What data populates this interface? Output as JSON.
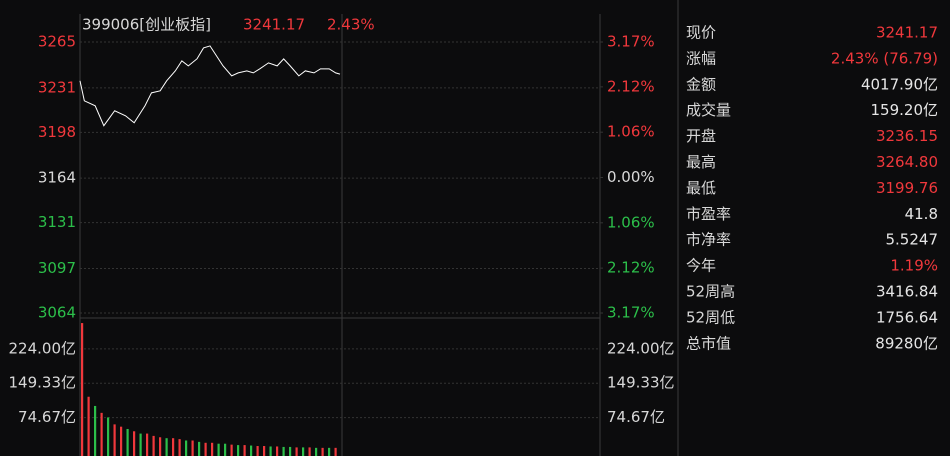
{
  "chart_data": {
    "type": "line",
    "title": "399006[创业板指]",
    "price_label": "3241.17",
    "change_label": "2.43%",
    "up_color": "#f0383c",
    "down_color": "#2cbf4a",
    "line_color": "#ffffff",
    "x": [
      0,
      2,
      7,
      11,
      16,
      21,
      25,
      30,
      33,
      37,
      40,
      44,
      47,
      50,
      54,
      57,
      60,
      63,
      66,
      70,
      73,
      77,
      80,
      83,
      87,
      91,
      94,
      97,
      101,
      104,
      108,
      111,
      115,
      118,
      120
    ],
    "values": [
      3236.2,
      3221.4,
      3217.7,
      3202.9,
      3214.0,
      3210.3,
      3205.1,
      3217.7,
      3227.3,
      3228.8,
      3236.2,
      3243.6,
      3251.0,
      3247.3,
      3252.5,
      3260.6,
      3262.1,
      3254.7,
      3247.3,
      3239.9,
      3242.1,
      3243.6,
      3242.1,
      3245.1,
      3249.5,
      3247.3,
      3252.5,
      3247.3,
      3239.9,
      3243.6,
      3242.1,
      3245.1,
      3245.1,
      3242.1,
      3241.2
    ],
    "xlim": [
      0,
      240
    ],
    "ylim": [
      3064,
      3265
    ],
    "yticks": [
      3265,
      3231,
      3198,
      3164,
      3131,
      3097,
      3064
    ],
    "y2lim": [
      -3.17,
      3.17
    ],
    "y2ticks": [
      {
        "value": 3.17,
        "label": "3.17%"
      },
      {
        "value": 2.12,
        "label": "2.12%"
      },
      {
        "value": 1.06,
        "label": "1.06%"
      },
      {
        "value": 0,
        "label": "0.00%"
      },
      {
        "value": -1.06,
        "label": "1.06%"
      },
      {
        "value": -2.12,
        "label": "2.12%"
      },
      {
        "value": -3.17,
        "label": "3.17%"
      }
    ],
    "grid": true
  },
  "volume_chart": {
    "type": "bar",
    "x": [
      0,
      3,
      6,
      9,
      12,
      15,
      18,
      21,
      24,
      27,
      30,
      33,
      36,
      39,
      42,
      45,
      48,
      51,
      54,
      57,
      60,
      63,
      66,
      69,
      72,
      75,
      78,
      81,
      84,
      87,
      90,
      93,
      96,
      99,
      102,
      105,
      108,
      111,
      114,
      117
    ],
    "values": [
      280,
      120,
      100,
      85,
      75,
      60,
      55,
      50,
      45,
      40,
      40,
      35,
      32,
      30,
      30,
      28,
      25,
      25,
      22,
      20,
      20,
      18,
      18,
      16,
      15,
      15,
      14,
      13,
      13,
      12,
      12,
      11,
      11,
      10,
      10,
      10,
      9,
      9,
      9,
      9
    ],
    "colors": [
      "#f0383c",
      "#f0383c",
      "#2cbf4a",
      "#f0383c",
      "#2cbf4a",
      "#f0383c",
      "#f0383c",
      "#2cbf4a",
      "#f0383c",
      "#2cbf4a",
      "#f0383c",
      "#f0383c",
      "#f0383c",
      "#2cbf4a",
      "#f0383c",
      "#f0383c",
      "#2cbf4a",
      "#f0383c",
      "#2cbf4a",
      "#f0383c",
      "#f0383c",
      "#2cbf4a",
      "#2cbf4a",
      "#f0383c",
      "#2cbf4a",
      "#f0383c",
      "#2cbf4a",
      "#f0383c",
      "#f0383c",
      "#2cbf4a",
      "#f0383c",
      "#2cbf4a",
      "#2cbf4a",
      "#f0383c",
      "#2cbf4a",
      "#f0383c",
      "#2cbf4a",
      "#f0383c",
      "#2cbf4a",
      "#f0383c"
    ],
    "xlim": [
      0,
      240
    ],
    "ylim": [
      0,
      291
    ],
    "yticks": [
      {
        "value": 224,
        "label": "224.00亿"
      },
      {
        "value": 149.33,
        "label": "149.33亿"
      },
      {
        "value": 74.67,
        "label": "74.67亿"
      }
    ]
  },
  "quote_table": {
    "rows": [
      {
        "label": "现价",
        "value": "3241.17",
        "color": "#f0383c"
      },
      {
        "label": "涨幅",
        "value": "2.43% (76.79)",
        "color": "#f0383c"
      },
      {
        "label": "金额",
        "value": "4017.90亿",
        "color": "#e6e6e6"
      },
      {
        "label": "成交量",
        "value": "159.20亿",
        "color": "#e6e6e6"
      },
      {
        "label": "开盘",
        "value": "3236.15",
        "color": "#f0383c"
      },
      {
        "label": "最高",
        "value": "3264.80",
        "color": "#f0383c"
      },
      {
        "label": "最低",
        "value": "3199.76",
        "color": "#f0383c"
      },
      {
        "label": "市盈率",
        "value": "41.8",
        "color": "#e6e6e6"
      },
      {
        "label": "市净率",
        "value": "5.5247",
        "color": "#e6e6e6"
      },
      {
        "label": "今年",
        "value": "1.19%",
        "color": "#f0383c"
      },
      {
        "label": "52周高",
        "value": "3416.84",
        "color": "#e6e6e6"
      },
      {
        "label": "52周低",
        "value": "1756.64",
        "color": "#e6e6e6"
      },
      {
        "label": "总市值",
        "value": "89280亿",
        "color": "#e6e6e6"
      }
    ]
  }
}
